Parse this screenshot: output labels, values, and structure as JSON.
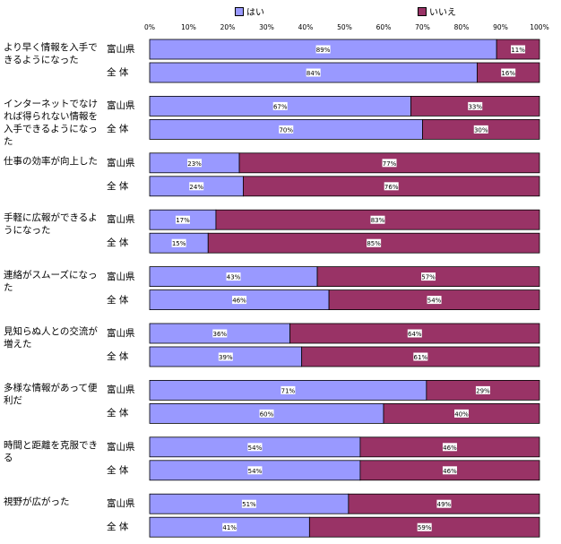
{
  "chart_data": {
    "type": "bar",
    "orientation": "horizontal",
    "stacked": true,
    "x_ticks": [
      "0%",
      "10%",
      "20%",
      "30%",
      "40%",
      "50%",
      "60%",
      "70%",
      "80%",
      "90%",
      "100%"
    ],
    "xlim": [
      0,
      100
    ],
    "legend": {
      "placement": "top",
      "entries": [
        "はい",
        "いいえ"
      ]
    },
    "colors": {
      "yes": "#9999ff",
      "no": "#993366"
    },
    "row_labels": [
      "富山県",
      "全 体"
    ],
    "categories": [
      {
        "label": "より早く情報を入手できるようになった",
        "rows": [
          {
            "yes": 89,
            "no": 11,
            "yes_label": "89%",
            "no_label": "11%"
          },
          {
            "yes": 84,
            "no": 16,
            "yes_label": "84%",
            "no_label": "16%"
          }
        ]
      },
      {
        "label": "インターネットでなければ得られない情報を入手できるようになった",
        "rows": [
          {
            "yes": 67,
            "no": 33,
            "yes_label": "67%",
            "no_label": "33%"
          },
          {
            "yes": 70,
            "no": 30,
            "yes_label": "70%",
            "no_label": "30%"
          }
        ]
      },
      {
        "label": "仕事の効率が向上した",
        "rows": [
          {
            "yes": 23,
            "no": 77,
            "yes_label": "23%",
            "no_label": "77%"
          },
          {
            "yes": 24,
            "no": 76,
            "yes_label": "24%",
            "no_label": "76%"
          }
        ]
      },
      {
        "label": "手軽に広報ができるようになった",
        "rows": [
          {
            "yes": 17,
            "no": 83,
            "yes_label": "17%",
            "no_label": "83%"
          },
          {
            "yes": 15,
            "no": 85,
            "yes_label": "15%",
            "no_label": "85%"
          }
        ]
      },
      {
        "label": "連絡がスムーズになった",
        "rows": [
          {
            "yes": 43,
            "no": 57,
            "yes_label": "43%",
            "no_label": "57%"
          },
          {
            "yes": 46,
            "no": 54,
            "yes_label": "46%",
            "no_label": "54%"
          }
        ]
      },
      {
        "label": "見知らぬ人との交流が増えた",
        "rows": [
          {
            "yes": 36,
            "no": 64,
            "yes_label": "36%",
            "no_label": "64%"
          },
          {
            "yes": 39,
            "no": 61,
            "yes_label": "39%",
            "no_label": "61%"
          }
        ]
      },
      {
        "label": "多様な情報があって便利だ",
        "rows": [
          {
            "yes": 71,
            "no": 29,
            "yes_label": "71%",
            "no_label": "29%"
          },
          {
            "yes": 60,
            "no": 40,
            "yes_label": "60%",
            "no_label": "40%"
          }
        ]
      },
      {
        "label": "時間と距離を克服できる",
        "rows": [
          {
            "yes": 54,
            "no": 46,
            "yes_label": "54%",
            "no_label": "46%"
          },
          {
            "yes": 54,
            "no": 46,
            "yes_label": "54%",
            "no_label": "46%"
          }
        ]
      },
      {
        "label": "視野が広がった",
        "rows": [
          {
            "yes": 51,
            "no": 49,
            "yes_label": "51%",
            "no_label": "49%"
          },
          {
            "yes": 41,
            "no": 59,
            "yes_label": "41%",
            "no_label": "59%"
          }
        ]
      }
    ]
  }
}
